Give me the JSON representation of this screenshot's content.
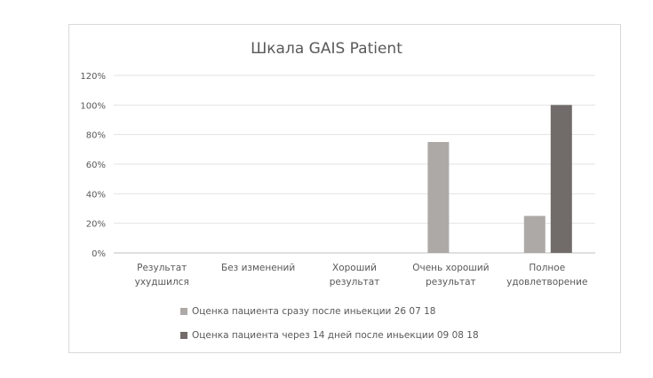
{
  "chart_data": {
    "type": "bar",
    "title": "Шкала GAIS Patient",
    "categories": [
      [
        "Результат",
        "ухудшился"
      ],
      [
        "Без изменений"
      ],
      [
        "Хороший",
        "результат"
      ],
      [
        "Очень хороший",
        "результат"
      ],
      [
        "Полное",
        "удовлетворение"
      ]
    ],
    "series": [
      {
        "name": "Оценка пациента сразу после иньекции 26 07 18",
        "values": [
          0,
          0,
          0,
          75,
          25
        ],
        "color": "#ada9a7"
      },
      {
        "name": "Оценка пациента через 14 дней после иньекции  09 08 18",
        "values": [
          0,
          0,
          0,
          0,
          100
        ],
        "color": "#716c6a"
      }
    ],
    "ylim": [
      0,
      120
    ],
    "yticks": [
      "0%",
      "20%",
      "40%",
      "60%",
      "80%",
      "100%",
      "120%"
    ],
    "grid": true,
    "legend": "bottom"
  }
}
